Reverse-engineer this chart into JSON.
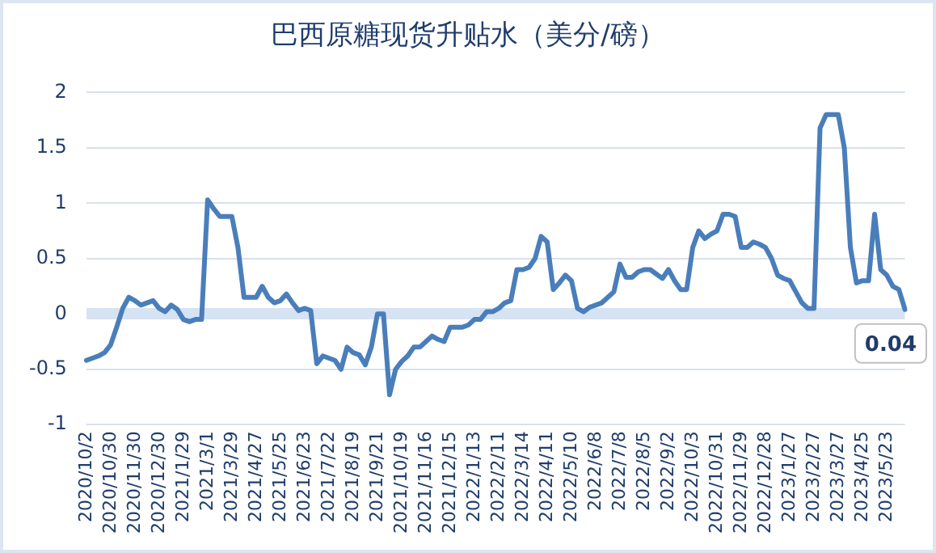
{
  "chart_data": {
    "type": "line",
    "title": "巴西原糖现货升贴水（美分/磅）",
    "categories": [
      "2020/10/2",
      null,
      null,
      null,
      "2020/10/30",
      null,
      null,
      null,
      "2020/11/30",
      null,
      null,
      null,
      "2020/12/30",
      null,
      null,
      null,
      "2021/1/29",
      null,
      null,
      null,
      "2021/3/1",
      null,
      null,
      null,
      "2021/3/29",
      null,
      null,
      null,
      "2021/4/27",
      null,
      null,
      null,
      "2021/5/25",
      null,
      null,
      null,
      "2021/6/23",
      null,
      null,
      null,
      "2021/7/22",
      null,
      null,
      null,
      "2021/8/19",
      null,
      null,
      null,
      "2021/9/21",
      null,
      null,
      null,
      "2021/10/19",
      null,
      null,
      null,
      "2021/11/16",
      null,
      null,
      null,
      "2021/12/15",
      null,
      null,
      null,
      "2022/1/13",
      null,
      null,
      null,
      "2022/2/11",
      null,
      null,
      null,
      "2022/3/14",
      null,
      null,
      null,
      "2022/4/11",
      null,
      null,
      null,
      "2022/5/10",
      null,
      null,
      null,
      "2022/6/8",
      null,
      null,
      null,
      "2022/7/8",
      null,
      null,
      null,
      "2022/8/5",
      null,
      null,
      null,
      "2022/9/2",
      null,
      null,
      null,
      "2022/10/3",
      null,
      null,
      null,
      "2022/10/31",
      null,
      null,
      null,
      "2022/11/29",
      null,
      null,
      null,
      "2022/12/28",
      null,
      null,
      null,
      "2023/1/27",
      null,
      null,
      null,
      "2023/2/27",
      null,
      null,
      null,
      "2023/3/27",
      null,
      null,
      null,
      "2023/4/25",
      null,
      null,
      null,
      "2023/5/23",
      null,
      null,
      null
    ],
    "series": [
      {
        "color": "#4a7ebb",
        "values": [
          -0.42,
          -0.4,
          -0.38,
          -0.35,
          -0.28,
          -0.12,
          0.05,
          0.15,
          0.12,
          0.08,
          0.1,
          0.12,
          0.05,
          0.02,
          0.08,
          0.04,
          -0.05,
          -0.07,
          -0.05,
          -0.05,
          1.03,
          0.95,
          0.88,
          0.88,
          0.88,
          0.6,
          0.15,
          0.15,
          0.15,
          0.25,
          0.15,
          0.1,
          0.12,
          0.18,
          0.1,
          0.03,
          0.05,
          0.03,
          -0.45,
          -0.38,
          -0.4,
          -0.42,
          -0.5,
          -0.3,
          -0.35,
          -0.37,
          -0.46,
          -0.3,
          0,
          0,
          -0.73,
          -0.5,
          -0.43,
          -0.38,
          -0.3,
          -0.3,
          -0.25,
          -0.2,
          -0.23,
          -0.25,
          -0.12,
          -0.12,
          -0.12,
          -0.1,
          -0.05,
          -0.05,
          0.02,
          0.02,
          0.05,
          0.1,
          0.12,
          0.4,
          0.4,
          0.42,
          0.5,
          0.7,
          0.65,
          0.22,
          0.28,
          0.35,
          0.3,
          0.05,
          0.02,
          0.06,
          0.08,
          0.1,
          0.15,
          0.2,
          0.45,
          0.33,
          0.33,
          0.38,
          0.4,
          0.4,
          0.36,
          0.32,
          0.4,
          0.3,
          0.22,
          0.22,
          0.6,
          0.75,
          0.68,
          0.72,
          0.75,
          0.9,
          0.9,
          0.88,
          0.6,
          0.6,
          0.65,
          0.63,
          0.6,
          0.5,
          0.35,
          0.32,
          0.3,
          0.2,
          0.1,
          0.05,
          0.05,
          1.68,
          1.8,
          1.8,
          1.8,
          1.5,
          0.6,
          0.28,
          0.3,
          0.3,
          0.9,
          0.4,
          0.35,
          0.25,
          0.22,
          0.04
        ],
        "value_labels": [
          null,
          null,
          null,
          null,
          null,
          null,
          null,
          null,
          null,
          null,
          null,
          null,
          null,
          null,
          null,
          null,
          null,
          null,
          null,
          null,
          null,
          null,
          null,
          null,
          null,
          null,
          null,
          null,
          null,
          null,
          null,
          null,
          null,
          null,
          null,
          null,
          null,
          null,
          null,
          null,
          null,
          null,
          null,
          null,
          null,
          null,
          null,
          null,
          null,
          null,
          null,
          null,
          null,
          null,
          null,
          null,
          null,
          null,
          null,
          null,
          null,
          null,
          null,
          null,
          null,
          null,
          null,
          null,
          null,
          null,
          null,
          null,
          null,
          null,
          null,
          null,
          null,
          null,
          null,
          null,
          null,
          null,
          null,
          null,
          null,
          null,
          null,
          null,
          null,
          null,
          null,
          null,
          null,
          null,
          null,
          null,
          null,
          null,
          null,
          null,
          null,
          null,
          null,
          null,
          null,
          null,
          null,
          null,
          null,
          null,
          null,
          null,
          null,
          null,
          null,
          null,
          null,
          null,
          null,
          null,
          null,
          null,
          null,
          null,
          null,
          null,
          null,
          null,
          null,
          null,
          null,
          null,
          null,
          null,
          null,
          "0.04"
        ]
      }
    ],
    "ylim": [
      -1,
      2
    ],
    "yticks": [
      -1,
      -0.5,
      0,
      0.5,
      1,
      1.5,
      2
    ],
    "grid": "y",
    "legend": false,
    "marker": "none",
    "line_style": "solid"
  }
}
